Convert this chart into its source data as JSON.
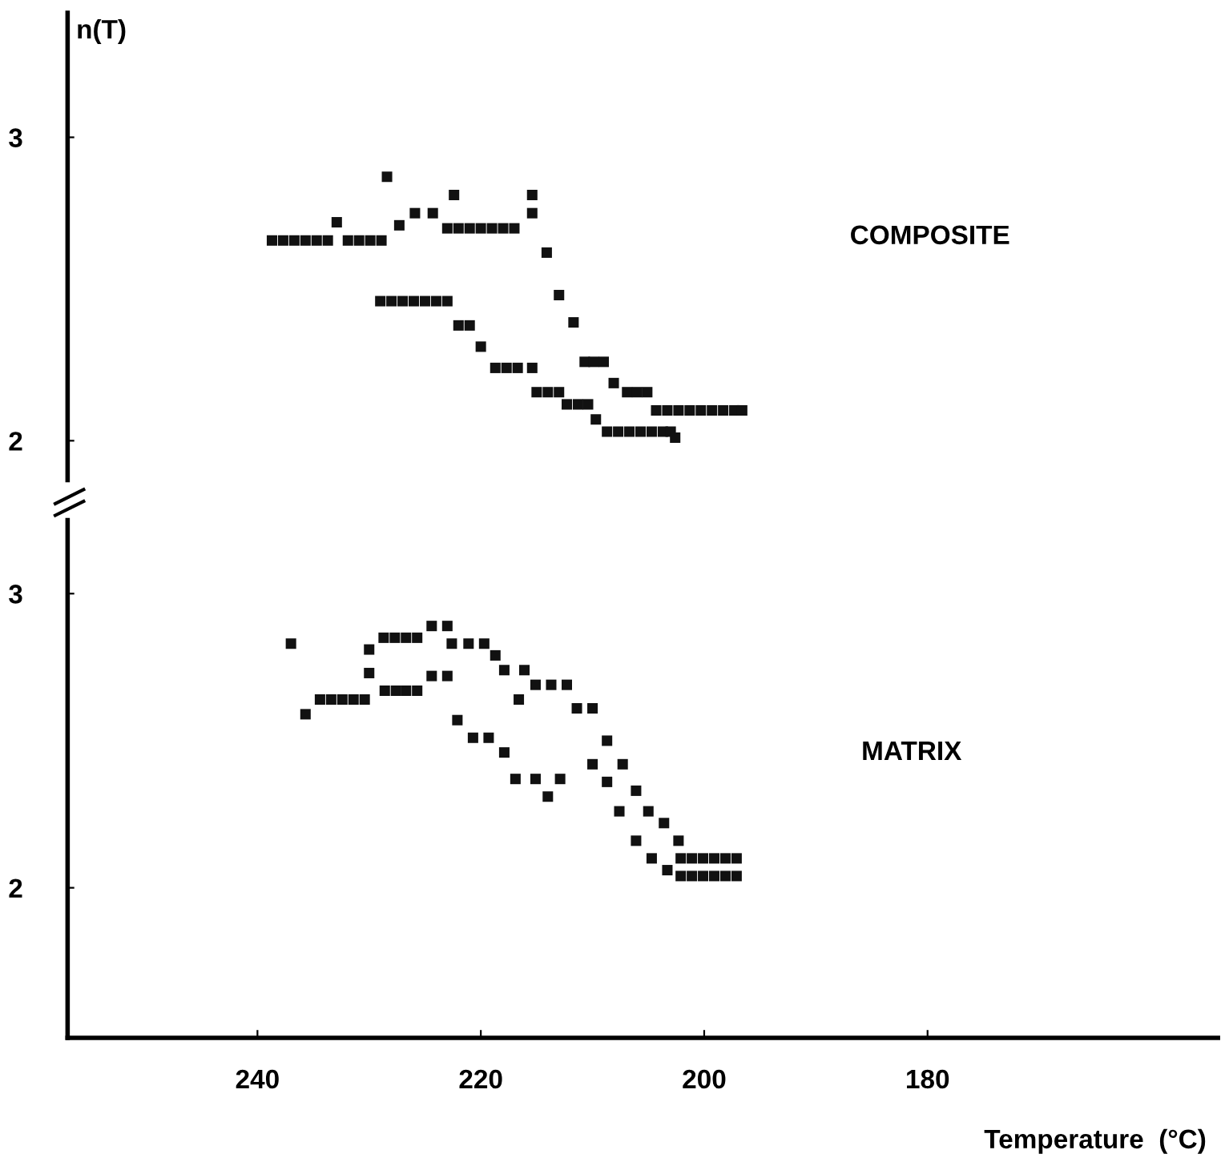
{
  "chart_data": [
    {
      "type": "scatter",
      "ylabel": "n(T)",
      "annotations": [
        "COMPOSITE"
      ],
      "xlim": [
        257,
        180
      ],
      "xticks": [
        240,
        220,
        200,
        180
      ],
      "ylim": [
        1.87,
        3.41
      ],
      "yticks": [
        2,
        3
      ],
      "tick_labels": "y",
      "grid": false,
      "marker": "square",
      "series": [
        {
          "color": "#111111",
          "x": [
            238.7,
            237.7,
            236.7,
            235.7,
            234.7,
            233.7,
            232.9,
            231.9,
            230.9,
            229.9,
            228.9,
            227.3,
            225.9,
            224.3,
            223.0,
            222.0,
            221.0,
            220.0,
            219.0,
            218.0,
            217.0,
            215.4,
            214.1,
            213.0,
            211.7,
            210.7,
            209.9,
            209.0,
            208.1,
            206.9,
            206.0,
            205.1,
            204.3,
            203.3,
            202.3,
            201.3,
            200.3,
            199.3,
            198.3,
            197.3,
            196.6,
            228.4,
            222.4,
            215.4,
            229.0,
            228.0,
            227.0,
            226.0,
            225.0,
            224.0,
            223.0,
            222.0,
            221.0,
            220.0,
            218.7,
            217.7,
            216.7,
            215.4,
            215.0,
            214.0,
            213.0,
            212.3,
            211.3,
            210.4,
            209.7,
            208.7,
            207.7,
            206.7,
            205.7,
            204.7,
            203.7,
            203.0,
            202.6
          ],
          "values": [
            2.66,
            2.66,
            2.66,
            2.66,
            2.66,
            2.66,
            2.72,
            2.66,
            2.66,
            2.66,
            2.66,
            2.71,
            2.75,
            2.75,
            2.7,
            2.7,
            2.7,
            2.7,
            2.7,
            2.7,
            2.7,
            2.75,
            2.62,
            2.48,
            2.39,
            2.26,
            2.26,
            2.26,
            2.19,
            2.16,
            2.16,
            2.16,
            2.1,
            2.1,
            2.1,
            2.1,
            2.1,
            2.1,
            2.1,
            2.1,
            2.1,
            2.87,
            2.81,
            2.81,
            2.46,
            2.46,
            2.46,
            2.46,
            2.46,
            2.46,
            2.46,
            2.38,
            2.38,
            2.31,
            2.24,
            2.24,
            2.24,
            2.24,
            2.16,
            2.16,
            2.16,
            2.12,
            2.12,
            2.12,
            2.07,
            2.03,
            2.03,
            2.03,
            2.03,
            2.03,
            2.03,
            2.03,
            2.01
          ]
        }
      ]
    },
    {
      "type": "scatter",
      "xlabel": "Temperature  (°C)",
      "annotations": [
        "MATRIX"
      ],
      "xlim": [
        257,
        154
      ],
      "xticks": [
        240,
        220,
        200,
        180
      ],
      "ylim": [
        1.49,
        3.25
      ],
      "yticks": [
        2,
        3
      ],
      "grid": false,
      "marker": "square",
      "series": [
        {
          "color": "#111111",
          "x": [
            237.0,
            235.7,
            234.4,
            233.4,
            232.4,
            231.4,
            230.4,
            230.0,
            230.0,
            228.7,
            227.7,
            226.7,
            225.7,
            224.4,
            223.0,
            228.6,
            227.6,
            226.7,
            225.7,
            224.4,
            223.0,
            222.1,
            220.7,
            219.3,
            217.9,
            216.9,
            215.1,
            214.0,
            212.9,
            222.6,
            221.1,
            219.7,
            218.7,
            217.9,
            216.1,
            216.6,
            215.1,
            213.7,
            212.3,
            211.4,
            210.0,
            208.7,
            210.0,
            207.3,
            208.7,
            206.1,
            207.6,
            205.0,
            203.6,
            206.1,
            202.3,
            204.7,
            203.3,
            202.1,
            201.1,
            200.1,
            199.1,
            198.1,
            197.1,
            202.1,
            201.1,
            200.1,
            199.1,
            198.1,
            197.1
          ],
          "values": [
            2.83,
            2.59,
            2.64,
            2.64,
            2.64,
            2.64,
            2.64,
            2.73,
            2.81,
            2.85,
            2.85,
            2.85,
            2.85,
            2.89,
            2.89,
            2.67,
            2.67,
            2.67,
            2.67,
            2.72,
            2.72,
            2.57,
            2.51,
            2.51,
            2.46,
            2.37,
            2.37,
            2.31,
            2.37,
            2.83,
            2.83,
            2.83,
            2.79,
            2.74,
            2.74,
            2.64,
            2.69,
            2.69,
            2.69,
            2.61,
            2.61,
            2.5,
            2.42,
            2.42,
            2.36,
            2.33,
            2.26,
            2.26,
            2.22,
            2.16,
            2.16,
            2.1,
            2.06,
            2.1,
            2.1,
            2.1,
            2.1,
            2.1,
            2.1,
            2.04,
            2.04,
            2.04,
            2.04,
            2.04,
            2.04
          ]
        }
      ]
    }
  ]
}
